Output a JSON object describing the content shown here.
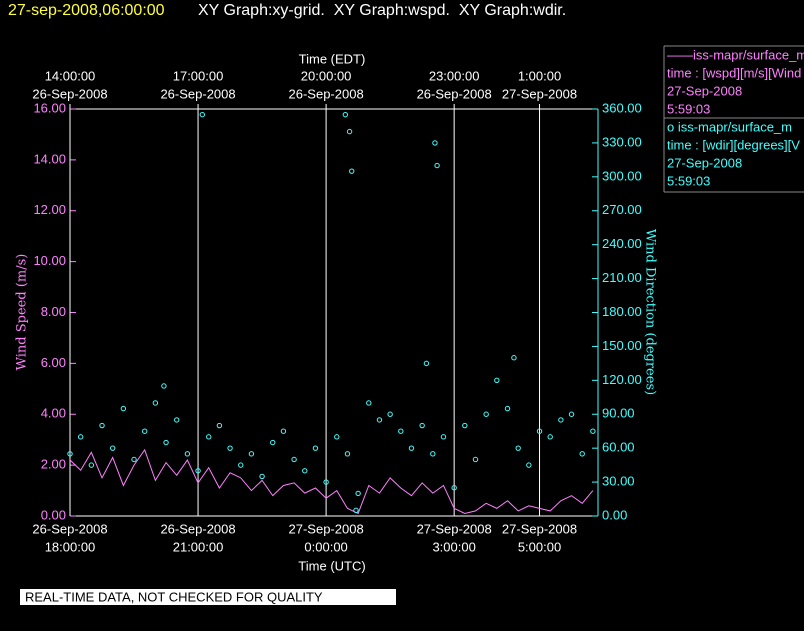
{
  "header": {
    "timestamp": "27-sep-2008,06:00:00",
    "graphs": "XY Graph:xy-grid.  XY Graph:wspd.  XY Graph:wdir."
  },
  "chart_data": {
    "type": "scatter",
    "x_title_top": "Time (EDT)",
    "x_title": "Time (UTC)",
    "y_title": "Wind Speed (m/s)",
    "y2_title": "Wind Direction (degrees)",
    "xlim": [
      0,
      12.37
    ],
    "xticks": [
      {
        "value": 0,
        "date": "26-Sep-2008",
        "label": "18:00:00"
      },
      {
        "value": 3,
        "date": "26-Sep-2008",
        "label": "21:00:00"
      },
      {
        "value": 6,
        "date": "27-Sep-2008",
        "label": "0:00:00"
      },
      {
        "value": 9,
        "date": "27-Sep-2008",
        "label": "3:00:00"
      },
      {
        "value": 11,
        "date": "27-Sep-2008",
        "label": "5:00:00"
      }
    ],
    "x2ticks": [
      {
        "value": 0,
        "label": "14:00:00",
        "date": "26-Sep-2008"
      },
      {
        "value": 3,
        "label": "17:00:00",
        "date": "26-Sep-2008"
      },
      {
        "value": 6,
        "label": "20:00:00",
        "date": "26-Sep-2008"
      },
      {
        "value": 9,
        "label": "23:00:00",
        "date": "26-Sep-2008"
      },
      {
        "value": 11,
        "label": "1:00:00",
        "date": "27-Sep-2008"
      }
    ],
    "ylim": [
      0,
      16
    ],
    "yticks": [
      {
        "value": 0,
        "label": "0.00"
      },
      {
        "value": 2,
        "label": "2.00"
      },
      {
        "value": 4,
        "label": "4.00"
      },
      {
        "value": 6,
        "label": "6.00"
      },
      {
        "value": 8,
        "label": "8.00"
      },
      {
        "value": 10,
        "label": "10.00"
      },
      {
        "value": 12,
        "label": "12.00"
      },
      {
        "value": 14,
        "label": "14.00"
      },
      {
        "value": 16,
        "label": "16.00"
      }
    ],
    "y2lim": [
      0,
      360
    ],
    "y2ticks": [
      {
        "value": 0,
        "label": "0.00"
      },
      {
        "value": 30,
        "label": "30.00"
      },
      {
        "value": 60,
        "label": "60.00"
      },
      {
        "value": 90,
        "label": "90.00"
      },
      {
        "value": 120,
        "label": "120.00"
      },
      {
        "value": 150,
        "label": "150.00"
      },
      {
        "value": 180,
        "label": "180.00"
      },
      {
        "value": 210,
        "label": "210.00"
      },
      {
        "value": 240,
        "label": "240.00"
      },
      {
        "value": 270,
        "label": "270.00"
      },
      {
        "value": 300,
        "label": "300.00"
      },
      {
        "value": 330,
        "label": "330.00"
      },
      {
        "value": 360,
        "label": "360.00"
      }
    ],
    "grid": true,
    "series": [
      {
        "name": "——iss-mapr/surface_m",
        "legend_lines": [
          "time : [wspd][m/s][Wind",
          "27-Sep-2008",
          "5:59:03"
        ],
        "color": "#ff80ff",
        "style": "line",
        "x": [
          0,
          0.25,
          0.5,
          0.75,
          1,
          1.25,
          1.5,
          1.75,
          2,
          2.25,
          2.5,
          2.75,
          3,
          3.25,
          3.5,
          3.75,
          4,
          4.25,
          4.5,
          4.75,
          5,
          5.25,
          5.5,
          5.75,
          6,
          6.25,
          6.5,
          6.75,
          7,
          7.25,
          7.5,
          7.75,
          8,
          8.25,
          8.5,
          8.75,
          9,
          9.25,
          9.5,
          9.75,
          10,
          10.25,
          10.5,
          10.75,
          11,
          11.25,
          11.5,
          11.75,
          12,
          12.25
        ],
        "values": [
          2.2,
          1.8,
          2.5,
          1.5,
          2.3,
          1.2,
          2.0,
          2.6,
          1.4,
          2.1,
          1.6,
          2.2,
          1.3,
          1.9,
          1.1,
          1.7,
          1.5,
          1.0,
          1.4,
          0.8,
          1.2,
          1.3,
          0.9,
          1.1,
          0.7,
          1.0,
          0.3,
          0.1,
          1.2,
          0.9,
          1.5,
          1.1,
          0.8,
          1.3,
          0.9,
          1.2,
          0.3,
          0.1,
          0.2,
          0.5,
          0.3,
          0.6,
          0.2,
          0.4,
          0.3,
          0.2,
          0.6,
          0.8,
          0.5,
          1.0
        ]
      },
      {
        "name": "o  iss-mapr/surface_m",
        "legend_lines": [
          "time : [wdir][degrees][V",
          "27-Sep-2008",
          "5:59:03"
        ],
        "color": "#40ffff",
        "style": "points",
        "axis": "y2",
        "x": [
          0,
          0.25,
          0.5,
          0.75,
          1,
          1.25,
          1.5,
          1.75,
          2,
          2.25,
          2.5,
          2.75,
          3,
          3.25,
          3.5,
          3.75,
          4,
          4.25,
          4.5,
          4.75,
          5,
          5.25,
          5.5,
          5.75,
          6,
          6.25,
          6.5,
          6.75,
          7,
          7.25,
          7.5,
          7.75,
          8,
          8.25,
          8.5,
          8.75,
          9,
          9.25,
          9.5,
          9.75,
          10,
          10.25,
          10.5,
          10.75,
          11,
          11.25,
          11.5,
          11.75,
          12,
          12.25,
          2.2,
          3.1,
          6.45,
          6.55,
          6.6,
          8.35,
          8.55,
          8.6,
          10.4,
          6.7
        ],
        "values": [
          55,
          70,
          45,
          80,
          60,
          95,
          50,
          75,
          100,
          65,
          85,
          55,
          40,
          70,
          80,
          60,
          45,
          55,
          35,
          65,
          75,
          50,
          40,
          60,
          30,
          70,
          55,
          20,
          100,
          85,
          90,
          75,
          60,
          80,
          55,
          70,
          25,
          80,
          50,
          90,
          120,
          95,
          60,
          45,
          75,
          70,
          85,
          90,
          55,
          75,
          115,
          355,
          355,
          340,
          305,
          135,
          330,
          310,
          140,
          5
        ]
      }
    ]
  },
  "footer": "REAL-TIME DATA, NOT CHECKED FOR QUALITY"
}
